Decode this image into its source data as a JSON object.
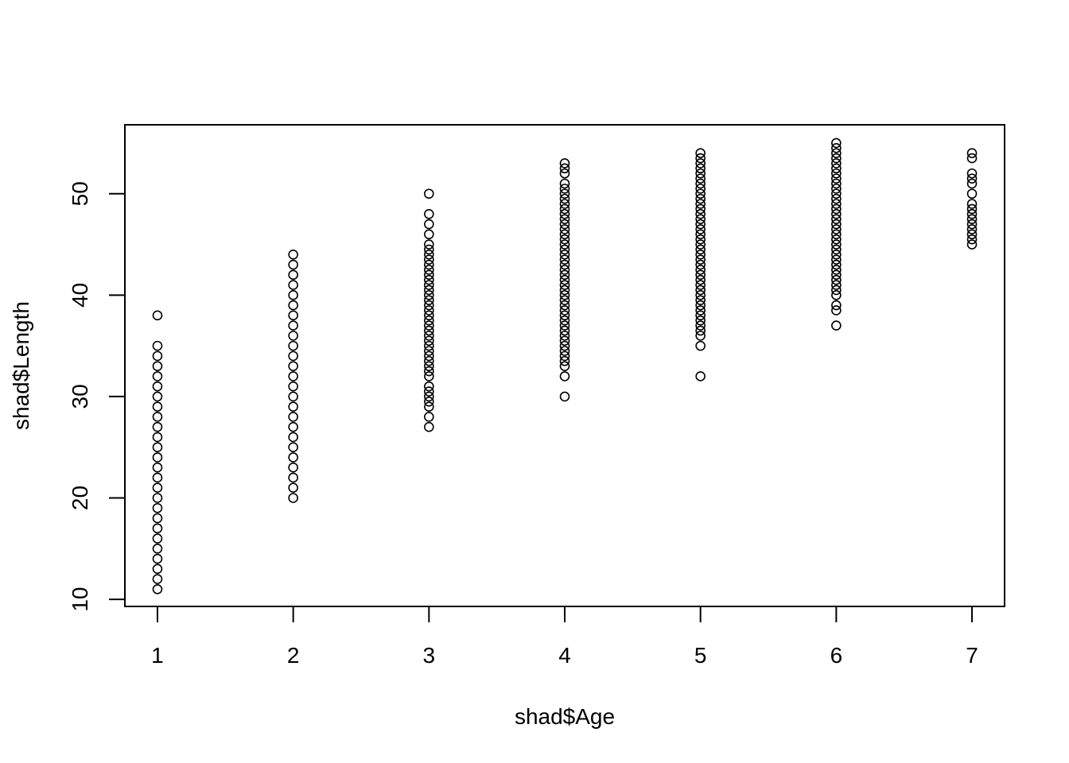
{
  "chart_data": {
    "type": "scatter",
    "xlabel": "shad$Age",
    "ylabel": "shad$Length",
    "xlim": [
      0.76,
      7.24
    ],
    "ylim": [
      9.3,
      56.8
    ],
    "x_ticks": [
      1,
      2,
      3,
      4,
      5,
      6,
      7
    ],
    "y_ticks": [
      10,
      20,
      30,
      40,
      50
    ],
    "grid": false,
    "marker": "open-circle",
    "colors": {
      "points": "#000000",
      "frame": "#000000",
      "background": "#ffffff"
    },
    "series": [
      {
        "x": 1,
        "y": [
          11,
          12,
          13,
          14,
          15,
          16,
          17,
          18,
          19,
          20,
          21,
          22,
          23,
          24,
          25,
          26,
          27,
          28,
          29,
          30,
          31,
          32,
          33,
          34,
          35,
          38
        ]
      },
      {
        "x": 2,
        "y": [
          20,
          21,
          22,
          23,
          24,
          25,
          26,
          27,
          28,
          29,
          30,
          31,
          32,
          33,
          34,
          35,
          36,
          37,
          38,
          39,
          40,
          41,
          42,
          43,
          44
        ]
      },
      {
        "x": 3,
        "y": [
          27,
          28,
          29,
          29.5,
          30,
          30.5,
          31,
          32,
          32.5,
          33,
          33.5,
          34,
          34.5,
          35,
          35.5,
          36,
          36.5,
          37,
          37.5,
          38,
          38.5,
          39,
          39.5,
          40,
          40.5,
          41,
          41.5,
          42,
          42.5,
          43,
          43.5,
          44,
          44.5,
          45,
          46,
          47,
          48,
          50
        ]
      },
      {
        "x": 4,
        "y": [
          30,
          32,
          33,
          33.5,
          34,
          34.5,
          35,
          35.5,
          36,
          36.5,
          37,
          37.5,
          38,
          38.5,
          39,
          39.5,
          40,
          40.5,
          41,
          41.5,
          42,
          42.5,
          43,
          43.5,
          44,
          44.5,
          45,
          45.5,
          46,
          46.5,
          47,
          47.5,
          48,
          48.5,
          49,
          49.5,
          50,
          50.5,
          51,
          52,
          52.5,
          53
        ]
      },
      {
        "x": 5,
        "y": [
          32,
          35,
          36,
          36.5,
          37,
          37.5,
          38,
          38.5,
          39,
          39.5,
          40,
          40.5,
          41,
          41.5,
          42,
          42.5,
          43,
          43.5,
          44,
          44.5,
          45,
          45.5,
          46,
          46.5,
          47,
          47.5,
          48,
          48.5,
          49,
          49.5,
          50,
          50.5,
          51,
          51.5,
          52,
          52.5,
          53,
          53.5,
          54
        ]
      },
      {
        "x": 6,
        "y": [
          37,
          38.5,
          39,
          40,
          40.5,
          41,
          41.5,
          42,
          42.5,
          43,
          43.5,
          44,
          44.5,
          45,
          45.5,
          46,
          46.5,
          47,
          47.5,
          48,
          48.5,
          49,
          49.5,
          50,
          50.5,
          51,
          51.5,
          52,
          52.5,
          53,
          53.5,
          54,
          54.5,
          55
        ]
      },
      {
        "x": 7,
        "y": [
          45,
          45.5,
          46,
          46.5,
          47,
          47.5,
          48,
          48.5,
          49,
          50,
          51,
          51.5,
          52,
          53.5,
          54
        ]
      }
    ]
  }
}
